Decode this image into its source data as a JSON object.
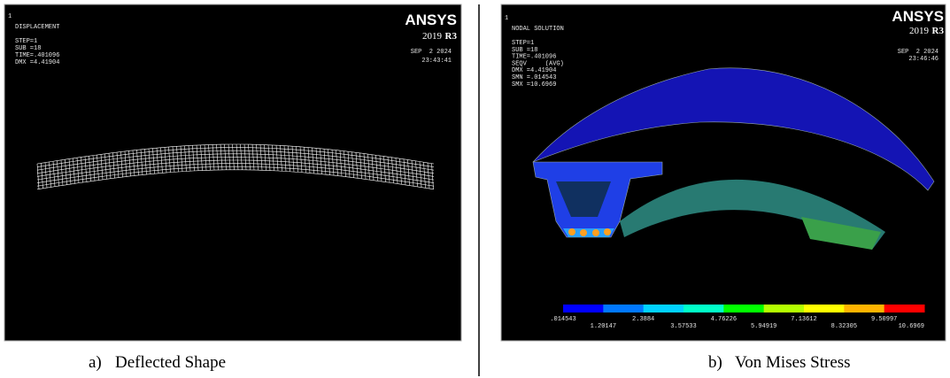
{
  "panels": [
    {
      "window_number": "1",
      "title": "DISPLACEMENT",
      "info": [
        "STEP=1",
        "SUB =18",
        "TIME=.401096",
        "DMX =4.41904"
      ],
      "brand": "ANSYS",
      "version": "2019",
      "release": "R3",
      "date": "SEP  2 2024",
      "time": "23:43:41",
      "caption_label": "a)",
      "caption": "Deflected Shape"
    },
    {
      "window_number": "1",
      "title": "NODAL SOLUTION",
      "info": [
        "STEP=1",
        "SUB =18",
        "TIME=.401096",
        "SEQV     (AVG)",
        "DMX =4.41904",
        "SMN =.014543",
        "SMX =10.6969"
      ],
      "brand": "ANSYS",
      "version": "2019",
      "release": "R3",
      "date": "SEP  2 2024",
      "time": "23:46:46",
      "caption_label": "b)",
      "caption": "Von Mises Stress",
      "legend": {
        "colors": [
          "#0000ff",
          "#0078ff",
          "#00d2ff",
          "#00ffc8",
          "#00ff00",
          "#b4ff00",
          "#ffff00",
          "#ffb400",
          "#ff0000"
        ],
        "labels": [
          ".014543",
          "1.20147",
          "2.3884",
          "3.57533",
          "4.76226",
          "5.94919",
          "7.13612",
          "8.32305",
          "9.50997",
          "10.6969"
        ]
      }
    }
  ]
}
